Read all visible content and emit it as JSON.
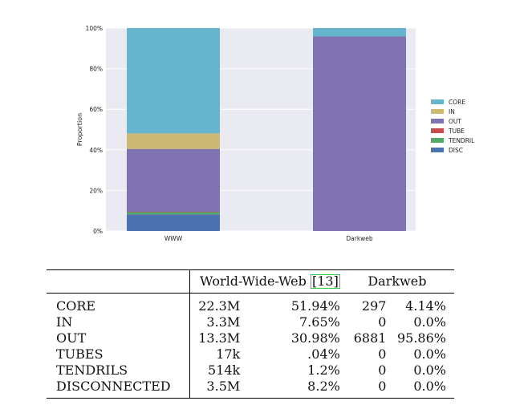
{
  "chart_data": {
    "type": "bar",
    "stacked": true,
    "ylabel": "Proportion",
    "categories": [
      "WWW",
      "Darkweb"
    ],
    "yticks": [
      "0%",
      "20%",
      "40%",
      "60%",
      "80%",
      "100%"
    ],
    "ylim": [
      0,
      100
    ],
    "legend_position": "right",
    "series": [
      {
        "name": "DISC",
        "color": "#4c72b0",
        "values": [
          8.2,
          0.0
        ]
      },
      {
        "name": "TENDRIL",
        "color": "#55a868",
        "values": [
          1.2,
          0.0
        ]
      },
      {
        "name": "TUBE",
        "color": "#c44e52",
        "values": [
          0.04,
          0.0
        ]
      },
      {
        "name": "OUT",
        "color": "#8172b2",
        "values": [
          30.98,
          95.86
        ]
      },
      {
        "name": "IN",
        "color": "#ccb974",
        "values": [
          7.65,
          0.0
        ]
      },
      {
        "name": "CORE",
        "color": "#64b5cd",
        "values": [
          51.94,
          4.14
        ]
      }
    ],
    "legend_order": [
      "CORE",
      "IN",
      "OUT",
      "TUBE",
      "TENDRIL",
      "DISC"
    ],
    "plot_background": "#eaeaf2",
    "grid": true
  },
  "table": {
    "header": {
      "www_pre": "World-Wide-Web ",
      "www_cite": "13",
      "darkweb": "Darkweb"
    },
    "rows": [
      {
        "label": "CORE",
        "www_count": "22.3M",
        "www_pct": "51.94%",
        "dw_count": "297",
        "dw_pct": "4.14%"
      },
      {
        "label": "IN",
        "www_count": "3.3M",
        "www_pct": "7.65%",
        "dw_count": "0",
        "dw_pct": "0.0%"
      },
      {
        "label": "OUT",
        "www_count": "13.3M",
        "www_pct": "30.98%",
        "dw_count": "6881",
        "dw_pct": "95.86%"
      },
      {
        "label": "TUBES",
        "www_count": "17k",
        "www_pct": ".04%",
        "dw_count": "0",
        "dw_pct": "0.0%"
      },
      {
        "label": "TENDRILS",
        "www_count": "514k",
        "www_pct": "1.2%",
        "dw_count": "0",
        "dw_pct": "0.0%"
      },
      {
        "label": "DISCONNECTED",
        "www_count": "3.5M",
        "www_pct": "8.2%",
        "dw_count": "0",
        "dw_pct": "0.0%"
      }
    ]
  }
}
